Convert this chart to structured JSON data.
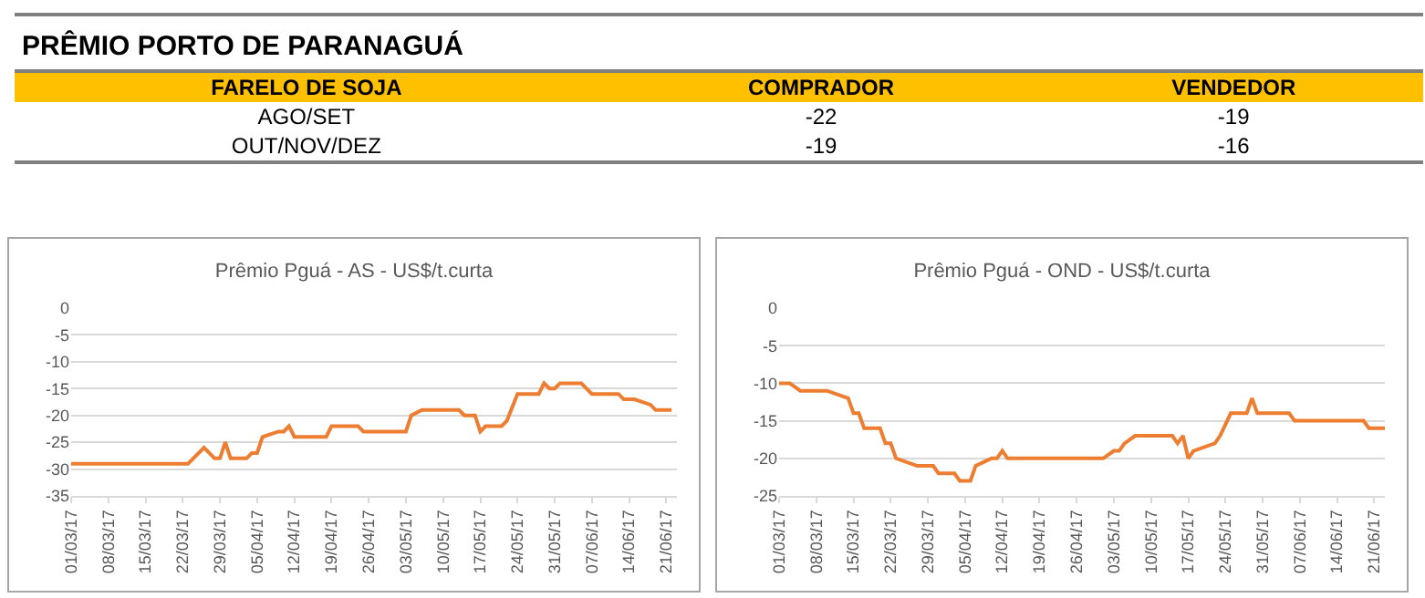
{
  "chart_data": [
    {
      "type": "other",
      "title": "PRÊMIO PORTO DE PARANAGUÁ",
      "color": "#ffc000",
      "categories": [
        "FARELO DE SOJA",
        "COMPRADOR",
        "VENDEDOR"
      ],
      "y_categories": [
        "AGO/SET",
        "OUT/NOV/DEZ"
      ],
      "cell_labels": [
        [
          "-22",
          "-19"
        ],
        [
          "-19",
          "-16"
        ]
      ]
    },
    {
      "type": "line",
      "title": "Prêmio Pguá - AS - US$/t.curta",
      "grid": "y",
      "marker": "none",
      "line_style": "solid",
      "xlim": [
        "--03-01",
        "--06-23"
      ],
      "xticks": [
        {
          "value": "--03-01",
          "label": "01/03/17"
        },
        {
          "value": "--03-08",
          "label": "08/03/17"
        },
        {
          "value": "--03-15",
          "label": "15/03/17"
        },
        {
          "value": "--03-22",
          "label": "22/03/17"
        },
        {
          "value": "--03-29",
          "label": "29/03/17"
        },
        {
          "value": "--04-05",
          "label": "05/04/17"
        },
        {
          "value": "--04-12",
          "label": "12/04/17"
        },
        {
          "value": "--04-19",
          "label": "19/04/17"
        },
        {
          "value": "--04-26",
          "label": "26/04/17"
        },
        {
          "value": "--05-03",
          "label": "03/05/17"
        },
        {
          "value": "--05-10",
          "label": "10/05/17"
        },
        {
          "value": "--05-17",
          "label": "17/05/17"
        },
        {
          "value": "--05-24",
          "label": "24/05/17"
        },
        {
          "value": "--05-31",
          "label": "31/05/17"
        },
        {
          "value": "--06-07",
          "label": "07/06/17"
        },
        {
          "value": "--06-14",
          "label": "14/06/17"
        },
        {
          "value": "--06-21",
          "label": "21/06/17"
        }
      ],
      "ylim": [
        -35,
        0
      ],
      "yticks": [
        -35,
        -30,
        -25,
        -20,
        -15,
        -10,
        -5,
        0
      ],
      "series": [
        {
          "color": "#ed7d31",
          "x": [
            "--03-01",
            "--03-23",
            "--03-26",
            "--03-28",
            "--03-29",
            "--03-30",
            "--03-31",
            "--04-03",
            "--04-04",
            "--04-05",
            "--04-06",
            "--04-09",
            "--04-10",
            "--04-11",
            "--04-12",
            "--04-18",
            "--04-19",
            "--04-24",
            "--04-25",
            "--05-03",
            "--05-04",
            "--05-06",
            "--05-13",
            "--05-14",
            "--05-16",
            "--05-17",
            "--05-18",
            "--05-21",
            "--05-22",
            "--05-24",
            "--05-28",
            "--05-29",
            "--05-30",
            "--05-31",
            "--06-01",
            "--06-05",
            "--06-07",
            "--06-12",
            "--06-13",
            "--06-15",
            "--06-18",
            "--06-19",
            "--06-22"
          ],
          "values": [
            -29,
            -29,
            -26,
            -28,
            -28,
            -25,
            -28,
            -28,
            -27,
            -27,
            -24,
            -23,
            -23,
            -22,
            -24,
            -24,
            -22,
            -22,
            -23,
            -23,
            -20,
            -19,
            -19,
            -20,
            -20,
            -23,
            -22,
            -22,
            -21,
            -16,
            -16,
            -14,
            -15,
            -15,
            -14,
            -14,
            -16,
            -16,
            -17,
            -17,
            -18,
            -19,
            -19
          ]
        }
      ]
    },
    {
      "type": "line",
      "title": "Prêmio Pguá - OND - US$/t.curta",
      "grid": "y",
      "marker": "none",
      "line_style": "solid",
      "xlim": [
        "--03-01",
        "--06-23"
      ],
      "xticks": [
        {
          "value": "--03-01",
          "label": "01/03/17"
        },
        {
          "value": "--03-08",
          "label": "08/03/17"
        },
        {
          "value": "--03-15",
          "label": "15/03/17"
        },
        {
          "value": "--03-22",
          "label": "22/03/17"
        },
        {
          "value": "--03-29",
          "label": "29/03/17"
        },
        {
          "value": "--04-05",
          "label": "05/04/17"
        },
        {
          "value": "--04-12",
          "label": "12/04/17"
        },
        {
          "value": "--04-19",
          "label": "19/04/17"
        },
        {
          "value": "--04-26",
          "label": "26/04/17"
        },
        {
          "value": "--05-03",
          "label": "03/05/17"
        },
        {
          "value": "--05-10",
          "label": "10/05/17"
        },
        {
          "value": "--05-17",
          "label": "17/05/17"
        },
        {
          "value": "--05-24",
          "label": "24/05/17"
        },
        {
          "value": "--05-31",
          "label": "31/05/17"
        },
        {
          "value": "--06-07",
          "label": "07/06/17"
        },
        {
          "value": "--06-14",
          "label": "14/06/17"
        },
        {
          "value": "--06-21",
          "label": "21/06/17"
        }
      ],
      "ylim": [
        -25,
        0
      ],
      "yticks": [
        -25,
        -20,
        -15,
        -10,
        -5,
        0
      ],
      "series": [
        {
          "color": "#ed7d31",
          "x": [
            "--03-01",
            "--03-03",
            "--03-05",
            "--03-10",
            "--03-14",
            "--03-15",
            "--03-16",
            "--03-17",
            "--03-20",
            "--03-21",
            "--03-22",
            "--03-23",
            "--03-27",
            "--03-30",
            "--03-31",
            "--04-03",
            "--04-04",
            "--04-06",
            "--04-07",
            "--04-10",
            "--04-11",
            "--04-12",
            "--04-13",
            "--05-01",
            "--05-03",
            "--05-04",
            "--05-05",
            "--05-07",
            "--05-14",
            "--05-15",
            "--05-16",
            "--05-17",
            "--05-18",
            "--05-22",
            "--05-23",
            "--05-25",
            "--05-28",
            "--05-29",
            "--05-30",
            "--06-05",
            "--06-06",
            "--06-19",
            "--06-20",
            "--06-23"
          ],
          "values": [
            -10,
            -10,
            -11,
            -11,
            -12,
            -14,
            -14,
            -16,
            -16,
            -18,
            -18,
            -20,
            -21,
            -21,
            -22,
            -22,
            -23,
            -23,
            -21,
            -20,
            -20,
            -19,
            -20,
            -20,
            -19,
            -19,
            -18,
            -17,
            -17,
            -18,
            -17,
            -20,
            -19,
            -18,
            -17,
            -14,
            -14,
            -12,
            -14,
            -14,
            -15,
            -15,
            -16,
            -16
          ]
        }
      ]
    }
  ]
}
